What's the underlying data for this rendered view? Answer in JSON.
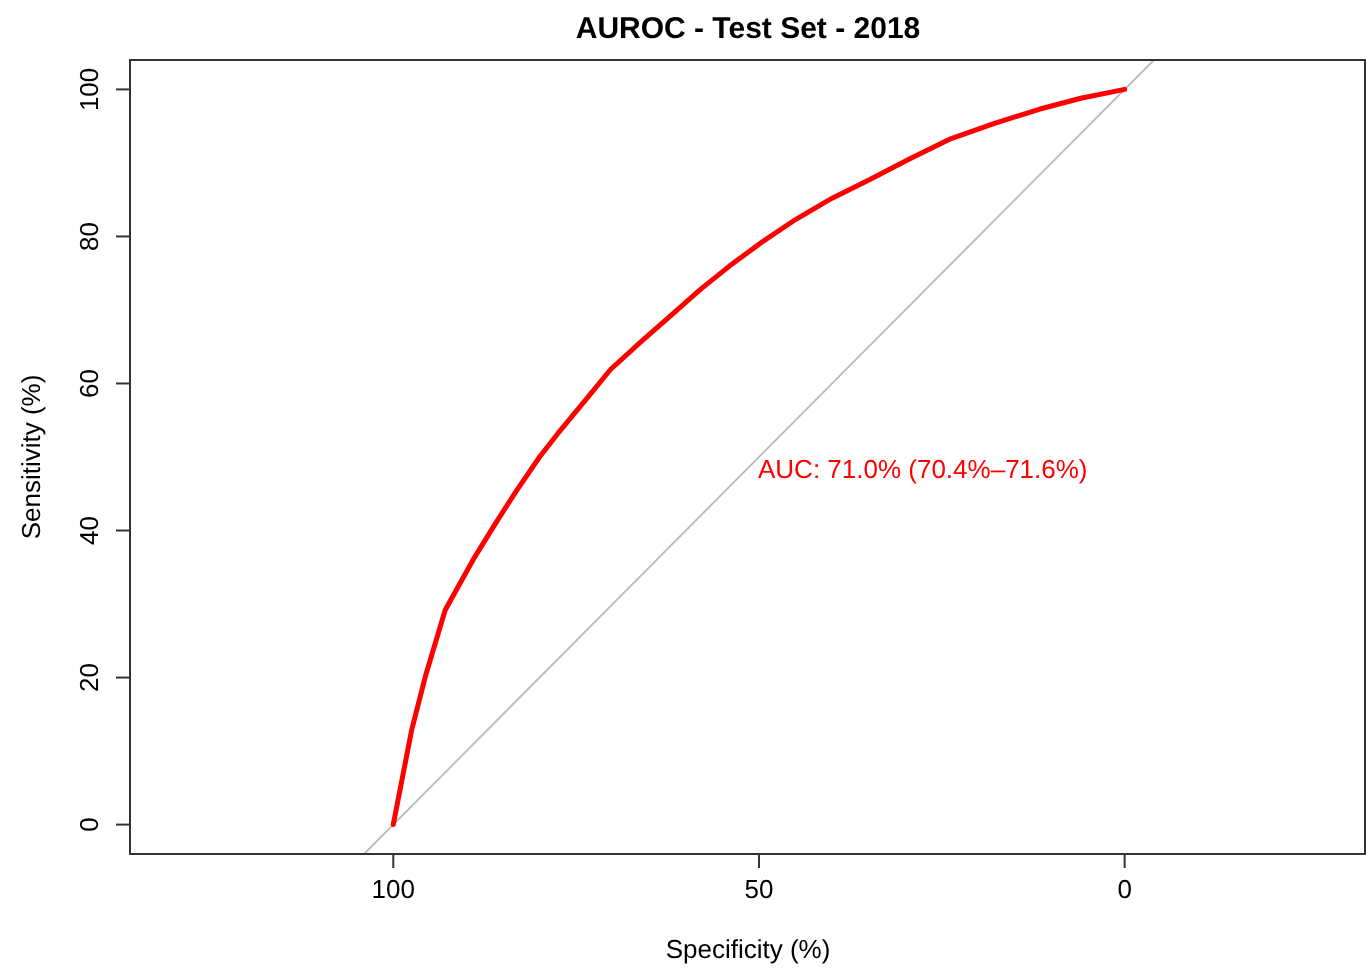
{
  "chart_data": {
    "type": "line",
    "title": "AUROC - Test Set - 2018",
    "xlabel": "Specificity (%)",
    "ylabel": "Sensitivity (%)",
    "xlim": [
      136,
      -33
    ],
    "ylim": [
      -4,
      104
    ],
    "xticks": [
      100,
      50,
      0
    ],
    "yticks": [
      0,
      20,
      40,
      60,
      80,
      100
    ],
    "grid": false,
    "marker": "none",
    "line_style": "solid",
    "annotations": [
      "AUC: 71.0% (70.4%–71.6%)"
    ],
    "series": [
      {
        "color": "#bebebe",
        "x": [
          104,
          -4
        ],
        "values": [
          -4,
          104
        ]
      },
      {
        "color": "#ff0000",
        "x": [
          100,
          97.5,
          95.6,
          92.9,
          89.1,
          86,
          83.1,
          80,
          77.1,
          73.5,
          70.3,
          66,
          62.1,
          58,
          54,
          49.5,
          45,
          40,
          34.9,
          29.5,
          24,
          18,
          11.7,
          6,
          0
        ],
        "values": [
          0,
          12.8,
          20.2,
          29.2,
          36,
          41,
          45.5,
          50,
          53.7,
          58,
          61.9,
          65.8,
          69.2,
          72.8,
          76,
          79.3,
          82.3,
          85.2,
          87.7,
          90.5,
          93.2,
          95.3,
          97.3,
          98.8,
          100
        ]
      }
    ]
  }
}
